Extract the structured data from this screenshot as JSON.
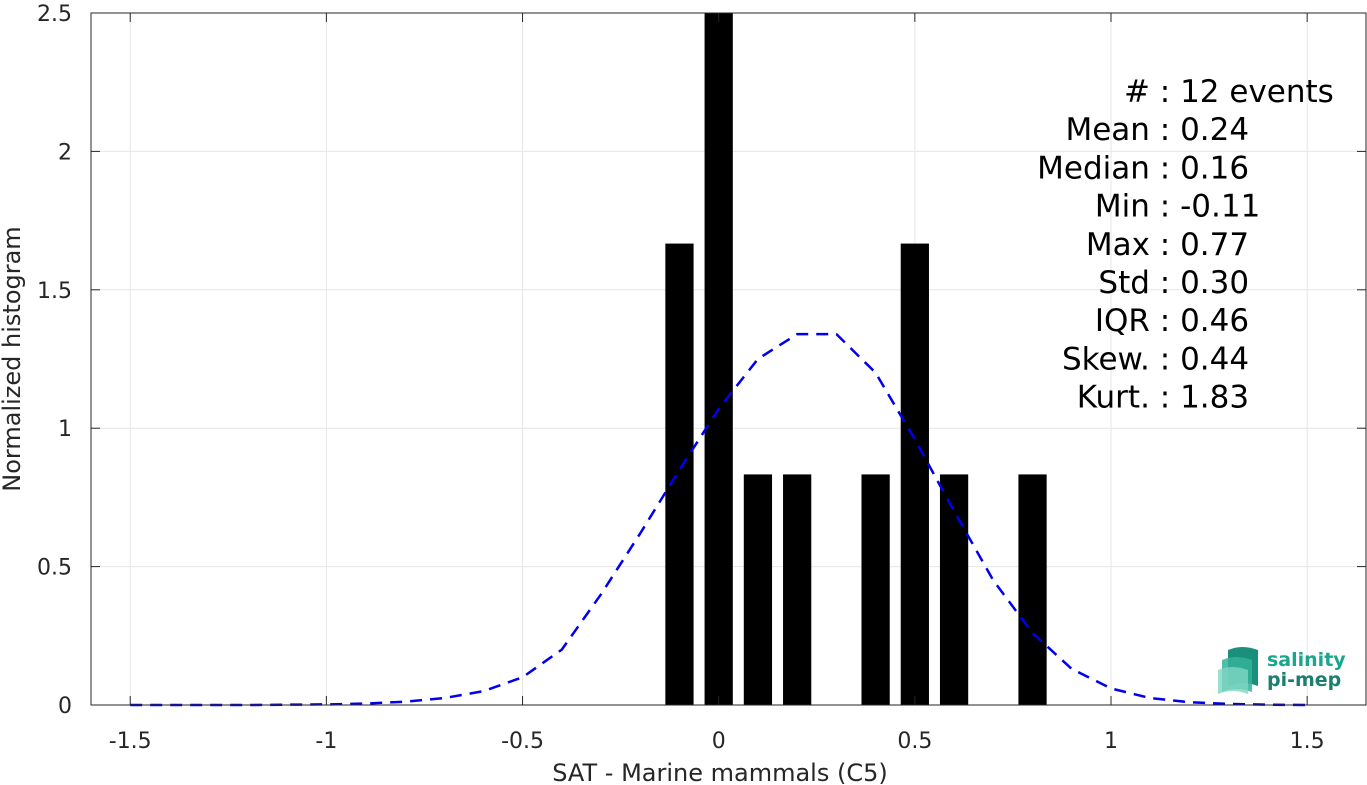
{
  "chart_data": {
    "type": "bar",
    "xlabel": "SAT - Marine mammals (C5)",
    "ylabel": "Normalized histogram",
    "xlim": [
      -1.5,
      1.5
    ],
    "ylim": [
      0,
      2.5
    ],
    "x_ticks": [
      -1.5,
      -1,
      -0.5,
      0,
      0.5,
      1,
      1.5
    ],
    "x_tick_labels": [
      "-1.5",
      "-1",
      "-0.5",
      "0",
      "0.5",
      "1",
      "1.5"
    ],
    "y_ticks": [
      0,
      0.5,
      1,
      1.5,
      2,
      2.5
    ],
    "y_tick_labels": [
      "0",
      "0.5",
      "1",
      "1.5",
      "2",
      "2.5"
    ],
    "grid": true,
    "bin_width": 0.1,
    "bars": [
      {
        "x": -0.1,
        "value": 1.667
      },
      {
        "x": 0.0,
        "value": 2.5
      },
      {
        "x": 0.1,
        "value": 0.833
      },
      {
        "x": 0.2,
        "value": 0.833
      },
      {
        "x": 0.4,
        "value": 0.833
      },
      {
        "x": 0.5,
        "value": 1.667
      },
      {
        "x": 0.6,
        "value": 0.833
      },
      {
        "x": 0.8,
        "value": 0.833
      }
    ],
    "fit_curve": {
      "style": "dashed",
      "color": "#0000ee",
      "x": [
        -1.5,
        -1.4,
        -1.3,
        -1.2,
        -1.1,
        -1.0,
        -0.9,
        -0.8,
        -0.7,
        -0.6,
        -0.5,
        -0.4,
        -0.3,
        -0.2,
        -0.1,
        0.0,
        0.1,
        0.2,
        0.3,
        0.4,
        0.5,
        0.6,
        0.7,
        0.8,
        0.9,
        1.0,
        1.1,
        1.2,
        1.3,
        1.4,
        1.5
      ],
      "y": [
        0.0,
        0.0,
        0.0,
        0.0,
        0.001,
        0.002,
        0.005,
        0.012,
        0.025,
        0.05,
        0.1,
        0.2,
        0.4,
        0.62,
        0.85,
        1.07,
        1.25,
        1.34,
        1.34,
        1.2,
        0.96,
        0.7,
        0.45,
        0.26,
        0.13,
        0.06,
        0.025,
        0.01,
        0.004,
        0.001,
        0.0
      ]
    },
    "bar_color": "#000000"
  },
  "stats": [
    {
      "label": "#",
      "sep": " : ",
      "value": "12 events"
    },
    {
      "label": "Mean",
      "sep": " : ",
      "value": "0.24"
    },
    {
      "label": "Median",
      "sep": " : ",
      "value": "0.16"
    },
    {
      "label": "Min",
      "sep": " : ",
      "value": "-0.11"
    },
    {
      "label": "Max",
      "sep": " : ",
      "value": "0.77"
    },
    {
      "label": "Std",
      "sep": " : ",
      "value": "0.30"
    },
    {
      "label": "IQR",
      "sep": " : ",
      "value": "0.46"
    },
    {
      "label": "Skew.",
      "sep": " : ",
      "value": "0.44"
    },
    {
      "label": "Kurt.",
      "sep": " : ",
      "value": "1.83"
    }
  ],
  "logo": {
    "line1": "salinity",
    "line2": "pi-mep",
    "color1": "#1aa68c",
    "color2": "#1a7f6e"
  }
}
